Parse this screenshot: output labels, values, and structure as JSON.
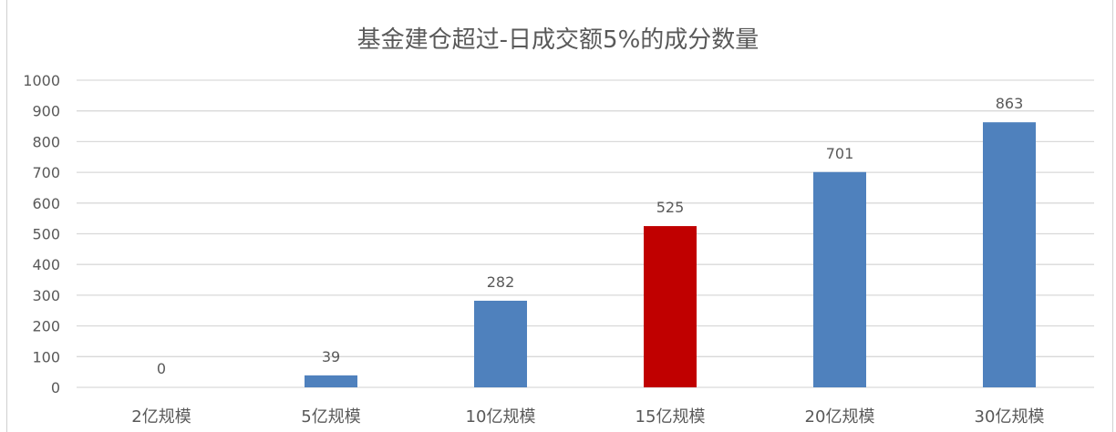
{
  "chart_data": {
    "type": "bar",
    "title": "基金建仓超过-日成交额5%的成分数量",
    "categories": [
      "2亿规模",
      "5亿规模",
      "10亿规模",
      "15亿规模",
      "20亿规模",
      "30亿规模"
    ],
    "values": [
      0,
      39,
      282,
      525,
      701,
      863
    ],
    "data_labels": [
      "0",
      "39",
      "282",
      "525",
      "701",
      "863"
    ],
    "ylim": [
      0,
      1000
    ],
    "yticks": [
      0,
      100,
      200,
      300,
      400,
      500,
      600,
      700,
      800,
      900,
      1000
    ],
    "grid": true,
    "legend": "none",
    "colors": {
      "default": "#4f81bd",
      "highlight": "#c00000",
      "highlight_index": 3,
      "grid": "#d9d9d9",
      "text": "#595959"
    }
  }
}
